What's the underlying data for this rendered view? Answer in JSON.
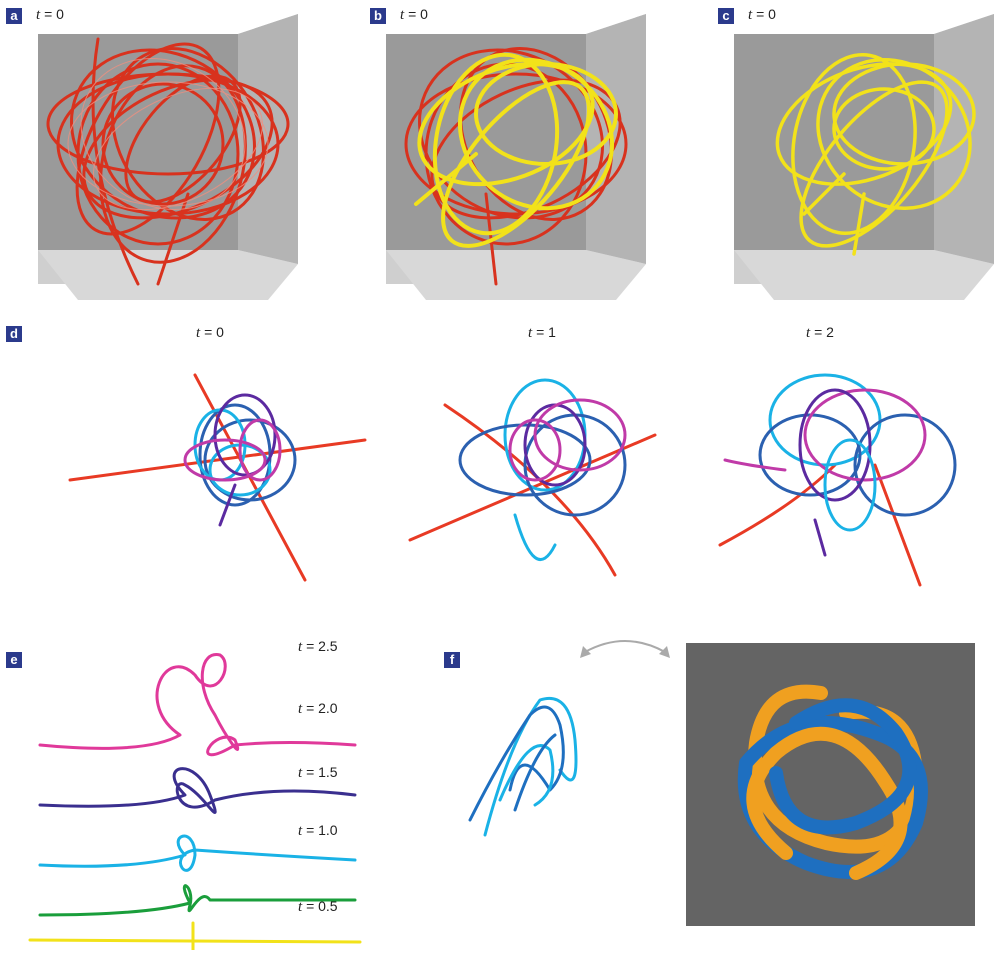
{
  "panels": {
    "a": {
      "label": "a",
      "t_var": "t",
      "t_value": "= 0"
    },
    "b": {
      "label": "b",
      "t_var": "t",
      "t_value": "= 0"
    },
    "c": {
      "label": "c",
      "t_var": "t",
      "t_value": "= 0"
    },
    "d": {
      "label": "d",
      "frames": [
        {
          "t_var": "t",
          "t_value": "= 0"
        },
        {
          "t_var": "t",
          "t_value": "= 1"
        },
        {
          "t_var": "t",
          "t_value": "= 2"
        }
      ]
    },
    "e": {
      "label": "e",
      "curves": [
        {
          "t_var": "t",
          "t_value": "= 2.5",
          "color": "#e0399a"
        },
        {
          "t_var": "t",
          "t_value": "= 2.0",
          "color": "#3a2f8f"
        },
        {
          "t_var": "t",
          "t_value": "= 1.5",
          "color": "#1ab2e6"
        },
        {
          "t_var": "t",
          "t_value": "= 1.0",
          "color": "#1a9e3b"
        },
        {
          "t_var": "t",
          "t_value": "= 0.5",
          "color": "#f2e21a"
        }
      ]
    },
    "f": {
      "label": "f"
    }
  },
  "colors": {
    "label_bg": "#2b3a8c",
    "red_tubes": "#d8321e",
    "yellow_tubes": "#f2e21a",
    "box_gray": "#9a9a9a",
    "knot_orange": "#f0a020",
    "knot_blue": "#1e6fc0",
    "knot_bg": "#646464"
  }
}
